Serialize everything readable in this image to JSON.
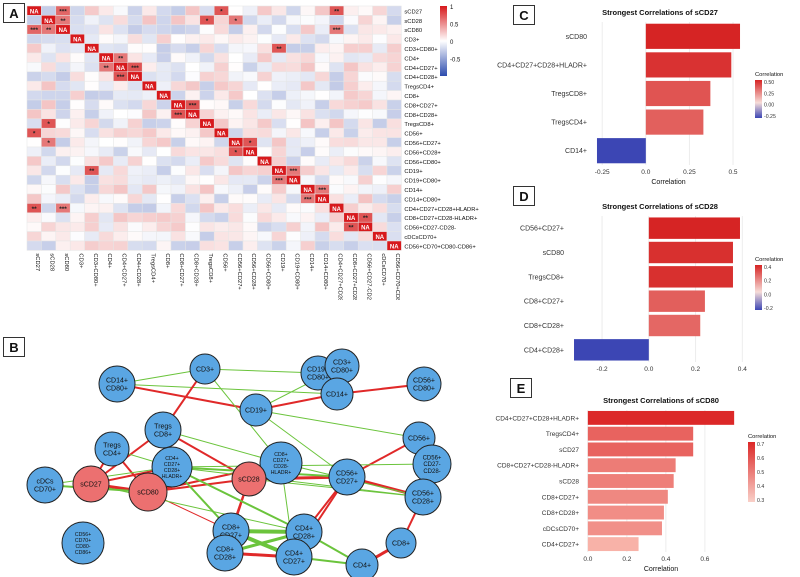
{
  "panels": {
    "A": "A",
    "B": "B",
    "C": "C",
    "D": "D",
    "E": "E"
  },
  "heatmap": {
    "labels": [
      "sCD27",
      "sCD28",
      "sCD80",
      "CD3+",
      "CD3+CD80+",
      "CD4+",
      "CD4+CD27+",
      "CD4+CD28+",
      "TregsCD4+",
      "CD8+",
      "CD8+CD27+",
      "CD8+CD28+",
      "TregsCD8+",
      "CD56+",
      "CD56+CD27+",
      "CD56+CD28+",
      "CD56+CD80+",
      "CD19+",
      "CD19+CD80+",
      "CD14+",
      "CD14+CD80+",
      "CD4+CD27+CD28+HLADR+",
      "CD8+CD27+CD28-HLADR+",
      "CD56+CD27-CD28-",
      "cDCsCD70+",
      "CD56+CD70+CD80-CD86+"
    ],
    "na_label": "NA",
    "legend_ticks": [
      "1",
      "0.5",
      "0",
      "-0.5"
    ],
    "highlights": [
      {
        "r": 0,
        "c": 2,
        "v": "**"
      },
      {
        "r": 0,
        "c": 13,
        "v": "*"
      },
      {
        "r": 0,
        "c": 21,
        "v": "**"
      },
      {
        "r": 1,
        "c": 2,
        "v": "**"
      },
      {
        "r": 1,
        "c": 12,
        "v": "*"
      },
      {
        "r": 1,
        "c": 14,
        "v": "*"
      },
      {
        "r": 2,
        "c": 0,
        "v": "***"
      },
      {
        "r": 2,
        "c": 1,
        "v": "**"
      },
      {
        "r": 2,
        "c": 21,
        "v": "***"
      },
      {
        "r": 4,
        "c": 17,
        "v": "**"
      },
      {
        "r": 5,
        "c": 6,
        "v": "**"
      },
      {
        "r": 6,
        "c": 5,
        "v": "**"
      },
      {
        "r": 6,
        "c": 7,
        "v": "***"
      },
      {
        "r": 7,
        "c": 6,
        "v": "***"
      },
      {
        "r": 10,
        "c": 11,
        "v": "***"
      },
      {
        "r": 11,
        "c": 10,
        "v": "***"
      },
      {
        "r": 14,
        "c": 15,
        "v": "*"
      },
      {
        "r": 17,
        "c": 18,
        "v": "***"
      },
      {
        "r": 19,
        "c": 20,
        "v": "***"
      },
      {
        "r": 21,
        "c": 0,
        "v": "**"
      },
      {
        "r": 21,
        "c": 2,
        "v": "***"
      },
      {
        "r": 22,
        "c": 23,
        "v": "**"
      }
    ]
  },
  "network": {
    "nodes": [
      {
        "id": "cd3",
        "lines": [
          "CD3+"
        ],
        "color": "blue"
      },
      {
        "id": "cd14cd80",
        "lines": [
          "CD14+",
          "CD80+"
        ],
        "color": "blue"
      },
      {
        "id": "cd19cd80",
        "lines": [
          "CD19+",
          "CD80+"
        ],
        "color": "blue"
      },
      {
        "id": "cd3cd80",
        "lines": [
          "CD3+",
          "CD80+"
        ],
        "color": "blue"
      },
      {
        "id": "cd56cd80",
        "lines": [
          "CD56+",
          "CD80+"
        ],
        "color": "blue"
      },
      {
        "id": "cd14",
        "lines": [
          "CD14+"
        ],
        "color": "blue"
      },
      {
        "id": "cd19",
        "lines": [
          "CD19+"
        ],
        "color": "blue"
      },
      {
        "id": "tregscd8",
        "lines": [
          "Tregs",
          "CD8+"
        ],
        "color": "blue"
      },
      {
        "id": "tregscd4",
        "lines": [
          "Tregs",
          "CD4+"
        ],
        "color": "blue"
      },
      {
        "id": "cdcs",
        "lines": [
          "cDCs",
          "CD70+"
        ],
        "color": "blue"
      },
      {
        "id": "cd4hla",
        "lines": [
          "CD4+",
          "CD27+",
          "CD28+",
          "HLADR+"
        ],
        "color": "blue"
      },
      {
        "id": "cd8hla",
        "lines": [
          "CD8+",
          "CD27+",
          "CD28-",
          "HLADR+"
        ],
        "color": "blue"
      },
      {
        "id": "cd56",
        "lines": [
          "CD56+"
        ],
        "color": "blue"
      },
      {
        "id": "cd56cd27n",
        "lines": [
          "CD56+",
          "CD27-",
          "CD28-"
        ],
        "color": "blue"
      },
      {
        "id": "cd56cd27",
        "lines": [
          "CD56+",
          "CD27+"
        ],
        "color": "blue"
      },
      {
        "id": "cd56cd28",
        "lines": [
          "CD56+",
          "CD28+"
        ],
        "color": "blue"
      },
      {
        "id": "scd27",
        "lines": [
          "sCD27"
        ],
        "color": "red"
      },
      {
        "id": "scd80",
        "lines": [
          "sCD80"
        ],
        "color": "red"
      },
      {
        "id": "scd28",
        "lines": [
          "sCD28"
        ],
        "color": "red"
      },
      {
        "id": "cd8cd27",
        "lines": [
          "CD8+",
          "CD27+"
        ],
        "color": "blue"
      },
      {
        "id": "cd4cd28",
        "lines": [
          "CD4+",
          "CD28+"
        ],
        "color": "blue"
      },
      {
        "id": "cd8cd28",
        "lines": [
          "CD8+",
          "CD28+"
        ],
        "color": "blue"
      },
      {
        "id": "cd4cd27",
        "lines": [
          "CD4+",
          "CD27+"
        ],
        "color": "blue"
      },
      {
        "id": "cd8",
        "lines": [
          "CD8+"
        ],
        "color": "blue"
      },
      {
        "id": "cd4",
        "lines": [
          "CD4+"
        ],
        "color": "blue"
      },
      {
        "id": "cd56cd70",
        "lines": [
          "CD56+",
          "CD70+",
          "CD80-",
          "CD86+"
        ],
        "color": "blue"
      }
    ]
  },
  "chart_data": [
    {
      "panel": "C",
      "type": "bar",
      "title": "Strongest Correlations of sCD27",
      "xlabel": "Correlation",
      "categories": [
        "sCD80",
        "CD4+CD27+CD28+HLADR+",
        "TregsCD8+",
        "TregsCD4+",
        "CD14+"
      ],
      "values": [
        0.54,
        0.49,
        0.37,
        0.33,
        -0.28
      ],
      "xlim": [
        -0.32,
        0.58
      ],
      "xticks": [
        "-0.25",
        "0.0",
        "0.25",
        "0.5"
      ],
      "legend_title": "Correlation",
      "legend_ticks": [
        "0.50",
        "0.25",
        "0.00",
        "-0.25"
      ]
    },
    {
      "panel": "D",
      "type": "bar",
      "title": "Strongest Correlations of sCD28",
      "xlabel": "Correlation",
      "categories": [
        "CD56+CD27+",
        "sCD80",
        "TregsCD8+",
        "CD8+CD27+",
        "CD8+CD28+",
        "CD4+CD28+"
      ],
      "values": [
        0.39,
        0.36,
        0.36,
        0.24,
        0.22,
        -0.32
      ],
      "xlim": [
        -0.35,
        0.42
      ],
      "xticks": [
        "-0.2",
        "0.0",
        "0.2",
        "0.4"
      ],
      "legend_title": "Correlation",
      "legend_ticks": [
        "0.4",
        "0.2",
        "0.0",
        "-0.2"
      ]
    },
    {
      "panel": "E",
      "type": "bar",
      "title": "Strongest Correlations of sCD80",
      "xlabel": "Correlation",
      "categories": [
        "CD4+CD27+CD28+HLADR+",
        "TregsCD4+",
        "sCD27",
        "CD8+CD27+CD28-HLADR+",
        "sCD28",
        "CD8+CD27+",
        "CD8+CD28+",
        "cDCsCD70+",
        "CD4+CD27+"
      ],
      "values": [
        0.75,
        0.54,
        0.54,
        0.45,
        0.44,
        0.41,
        0.39,
        0.38,
        0.26
      ],
      "xlim": [
        -0.03,
        0.78
      ],
      "xticks": [
        "0.0",
        "0.2",
        "0.4",
        "0.6"
      ],
      "legend_title": "Correlation",
      "legend_ticks": [
        "0.7",
        "0.6",
        "0.5",
        "0.4",
        "0.3"
      ]
    }
  ]
}
